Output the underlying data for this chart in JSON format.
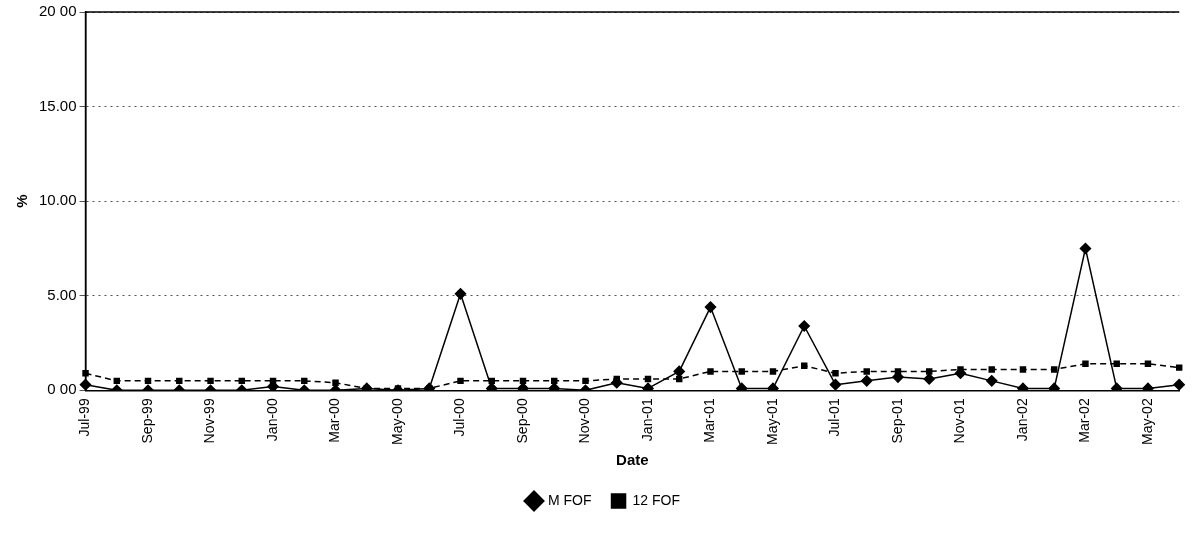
{
  "chart_data": {
    "type": "line",
    "xlabel": "Date",
    "ylabel": "%",
    "categories": [
      "Jul-99",
      null,
      "Sep-99",
      null,
      "Nov-99",
      null,
      "Jan-00",
      null,
      "Mar-00",
      null,
      "May-00",
      null,
      "Jul-00",
      null,
      "Sep-00",
      null,
      "Nov-00",
      null,
      "Jan-01",
      null,
      "Mar-01",
      null,
      "May-01",
      null,
      "Jul-01",
      null,
      "Sep-01",
      null,
      "Nov-01",
      null,
      "Jan-02",
      null,
      "Mar-02",
      null,
      "May-02",
      null
    ],
    "series": [
      {
        "name": "M FOF",
        "color": "#000000",
        "marker": "diamond",
        "line_style": "solid",
        "values": [
          0.3,
          0,
          0,
          0,
          0,
          0,
          0.2,
          0,
          0,
          0.1,
          0,
          0.1,
          5.1,
          0.1,
          0.1,
          0.1,
          0,
          0.4,
          0.1,
          1.0,
          4.4,
          0.1,
          0.1,
          3.4,
          0.3,
          0.5,
          0.7,
          0.6,
          0.9,
          0.5,
          0.1,
          0.1,
          7.5,
          0.1,
          0.1,
          0.3
        ]
      },
      {
        "name": "12 FOF",
        "color": "#000000",
        "marker": "square",
        "line_style": "dashed",
        "values": [
          0.9,
          0.5,
          0.5,
          0.5,
          0.5,
          0.5,
          0.5,
          0.5,
          0.4,
          0.1,
          0.1,
          0.1,
          0.5,
          0.5,
          0.5,
          0.5,
          0.5,
          0.6,
          0.6,
          0.6,
          1.0,
          1.0,
          1.0,
          1.3,
          0.9,
          1.0,
          1.0,
          1.0,
          1.1,
          1.1,
          1.1,
          1.1,
          1.4,
          1.4,
          1.4,
          1.2
        ]
      }
    ],
    "ylim": [
      0,
      20
    ],
    "yticks": [
      {
        "value": 0,
        "label": "0 00"
      },
      {
        "value": 5,
        "label": "5.00"
      },
      {
        "value": 10,
        "label": "10.00"
      },
      {
        "value": 15,
        "label": "15.00"
      },
      {
        "value": 20,
        "label": "20 00"
      }
    ],
    "grid": "y",
    "legend": "bottom"
  }
}
